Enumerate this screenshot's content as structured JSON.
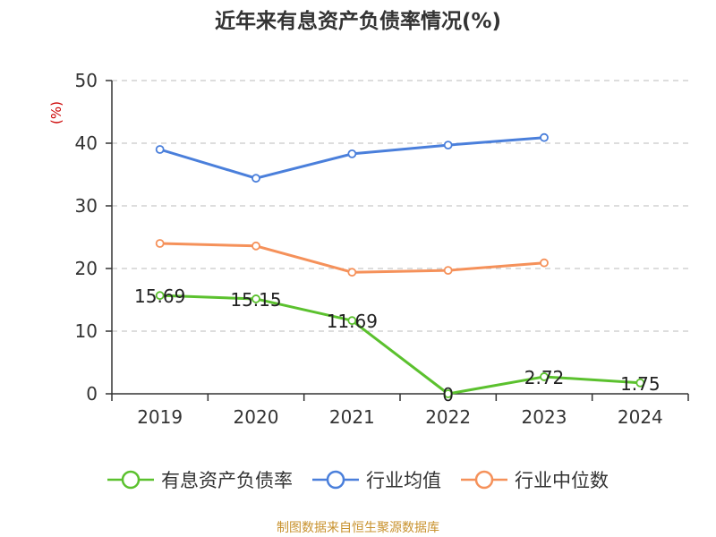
{
  "chart_data": {
    "type": "line",
    "title": "近年来有息资产负债率情况(%)",
    "ylabel": "(%)",
    "xlabel": "",
    "categories": [
      "2019",
      "2020",
      "2021",
      "2022",
      "2023",
      "2024"
    ],
    "ylim": [
      0,
      50
    ],
    "yticks": [
      0,
      10,
      20,
      30,
      40,
      50
    ],
    "grid": true,
    "legend_position": "bottom",
    "series": [
      {
        "name": "有息资产负债率",
        "color": "#5bc12e",
        "values": [
          15.69,
          15.15,
          11.69,
          0,
          2.72,
          1.75
        ],
        "data_labels": [
          "15.69",
          "15.15",
          "11.69",
          "0",
          "2.72",
          "1.75"
        ]
      },
      {
        "name": "行业均值",
        "color": "#4a7fdb",
        "values": [
          39.0,
          34.4,
          38.3,
          39.7,
          40.9,
          null
        ]
      },
      {
        "name": "行业中位数",
        "color": "#f5915a",
        "values": [
          24.0,
          23.6,
          19.4,
          19.7,
          20.9,
          null
        ]
      }
    ]
  },
  "source": "制图数据来自恒生聚源数据库",
  "colors": {
    "axis": "#333333",
    "grid": "#bbbbbb",
    "ylabel": "#cc0000",
    "source": "#c8922e"
  }
}
